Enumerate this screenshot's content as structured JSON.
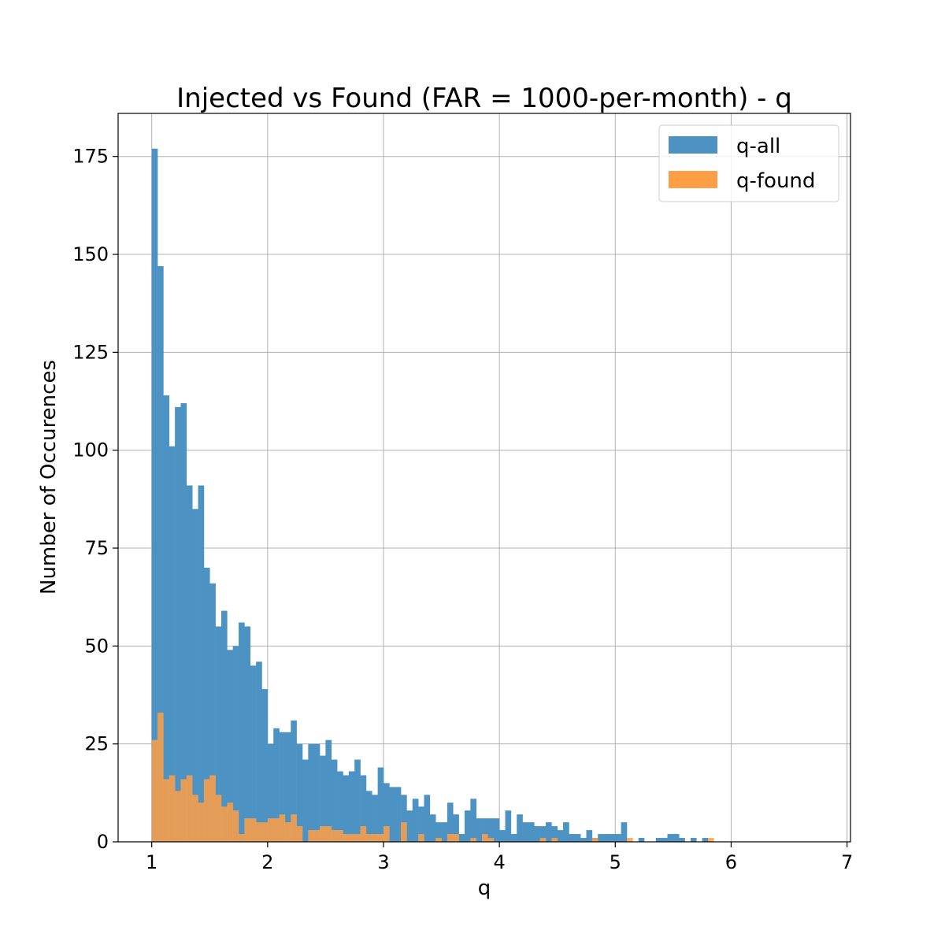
{
  "chart_data": {
    "type": "bar",
    "title": "Injected vs Found (FAR = 1000-per-month) - q",
    "xlabel": "q",
    "ylabel": "Number of Occurences",
    "xlim": [
      0.71,
      7.03
    ],
    "ylim": [
      0,
      186
    ],
    "xticks": [
      1,
      2,
      3,
      4,
      5,
      6,
      7
    ],
    "yticks": [
      0,
      25,
      50,
      75,
      100,
      125,
      150,
      175
    ],
    "grid": true,
    "legend_position": "top-right",
    "bin_start": 1.0,
    "bin_width": 0.05,
    "series": [
      {
        "name": "q-all",
        "color": "#4c93c3",
        "values": [
          177,
          147,
          114,
          101,
          111,
          112,
          91,
          85,
          91,
          70,
          66,
          55,
          59,
          49,
          50,
          56,
          55,
          45,
          46,
          39,
          25,
          29,
          28,
          28,
          31,
          25,
          21,
          25,
          25,
          22,
          26,
          21,
          18,
          17,
          18,
          21,
          17,
          13,
          12,
          19,
          15,
          14,
          14,
          12,
          8,
          11,
          9,
          12,
          7,
          5,
          5,
          10,
          7,
          2,
          8,
          11,
          6,
          6,
          6,
          6,
          3,
          8,
          2,
          7,
          5,
          5,
          4,
          4,
          5,
          4,
          3,
          5,
          2,
          2,
          1,
          3,
          1,
          2,
          2,
          2,
          2,
          5,
          0,
          0,
          1,
          0,
          0,
          1,
          1,
          2,
          2,
          1,
          0,
          1,
          0,
          1,
          0,
          0,
          0,
          0
        ]
      },
      {
        "name": "q-found",
        "color": "#ff9f45",
        "values": [
          26,
          33,
          16,
          17,
          13,
          16,
          17,
          12,
          10,
          16,
          17,
          12,
          9,
          10,
          8,
          2,
          6,
          6,
          5,
          5,
          6,
          6,
          7,
          5,
          7,
          4,
          0,
          3,
          3,
          4,
          4,
          3,
          3,
          2,
          2,
          2,
          4,
          2,
          2,
          2,
          4,
          0,
          0,
          5,
          0,
          0,
          2,
          0,
          0,
          1,
          0,
          2,
          2,
          0,
          0,
          1,
          0,
          2,
          1,
          0,
          0,
          0,
          0,
          0,
          0,
          0,
          0,
          1,
          0,
          1,
          0,
          0,
          0,
          0,
          0,
          0,
          1,
          0,
          0,
          0,
          0,
          0,
          1,
          0,
          0,
          0,
          0,
          0,
          0,
          0,
          0,
          0,
          0,
          0,
          0,
          0,
          1,
          0,
          0,
          0
        ]
      }
    ]
  }
}
